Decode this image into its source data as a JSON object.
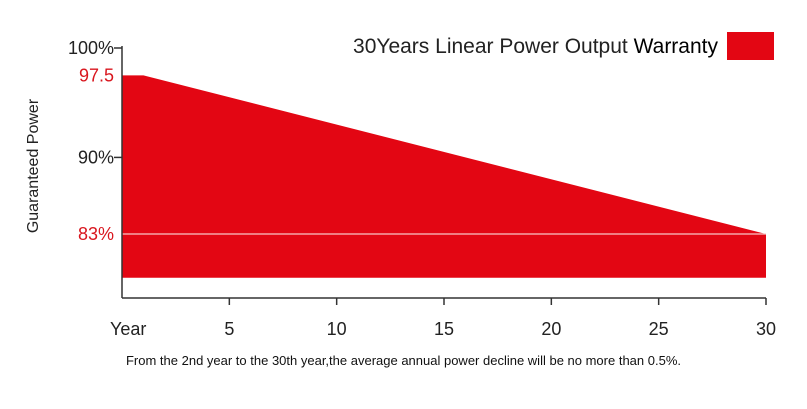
{
  "chart_data": {
    "type": "area",
    "title": "30Years Linear Power Output Warranty",
    "legend_position": "top-right",
    "xlabel": "Year",
    "ylabel": "Guaranteed Power",
    "x_ticks": [
      5,
      10,
      15,
      20,
      25,
      30
    ],
    "x_range": [
      0,
      30
    ],
    "y_ticks": [
      {
        "value": 100,
        "label": "100%",
        "highlight": false
      },
      {
        "value": 97.5,
        "label": "97.5",
        "highlight": true
      },
      {
        "value": 90,
        "label": "90%",
        "highlight": false
      },
      {
        "value": 83,
        "label": "83%",
        "highlight": true
      }
    ],
    "series": [
      {
        "name": "Warranty",
        "x": [
          0,
          1,
          30
        ],
        "y": [
          97.5,
          97.5,
          83
        ],
        "baseline": 79,
        "divider_at": 83
      }
    ]
  },
  "caption": "From the 2nd year to the 30th year,the average annual power decline will be no more than 0.5%.",
  "colors": {
    "fill": "#e30613",
    "axis": "#333333",
    "highlight_text": "#d9161e",
    "text": "#222222"
  }
}
